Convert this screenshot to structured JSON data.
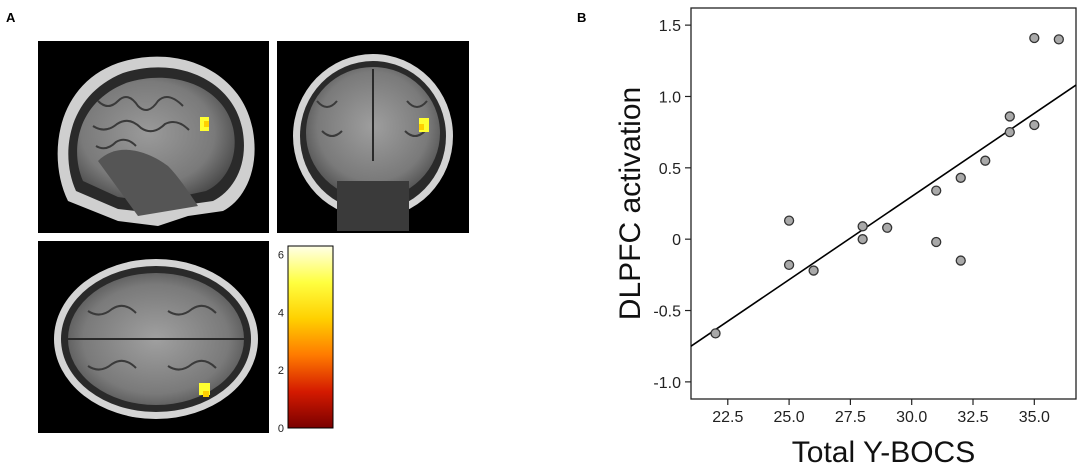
{
  "panel_a": {
    "label": "A",
    "colorbar": {
      "ticks": [
        0,
        2,
        4,
        6
      ],
      "min": 0,
      "max": 6.3,
      "colors": [
        "#7a0000",
        "#d41a00",
        "#ff7a00",
        "#ffd000",
        "#ffff40",
        "#ffffe8"
      ]
    }
  },
  "panel_b": {
    "label": "B"
  },
  "chart_data": {
    "type": "scatter",
    "xlabel": "Total Y-BOCS",
    "ylabel": "DLPFC activation",
    "xlim": [
      21.0,
      36.7
    ],
    "ylim": [
      -1.12,
      1.62
    ],
    "xticks": [
      "22.5",
      "25.0",
      "27.5",
      "30.0",
      "32.5",
      "35.0"
    ],
    "xtick_values": [
      22.5,
      25.0,
      27.5,
      30.0,
      32.5,
      35.0
    ],
    "yticks": [
      "1.5",
      "1.0",
      "0.5",
      "0",
      "-0.5",
      "-1.0"
    ],
    "ytick_values": [
      1.5,
      1.0,
      0.5,
      0,
      -0.5,
      -1.0
    ],
    "points": [
      {
        "x": 22,
        "y": -0.66
      },
      {
        "x": 25,
        "y": 0.13
      },
      {
        "x": 25,
        "y": -0.18
      },
      {
        "x": 26,
        "y": -0.22
      },
      {
        "x": 28,
        "y": 0.09
      },
      {
        "x": 28,
        "y": 0.0
      },
      {
        "x": 29,
        "y": 0.08
      },
      {
        "x": 31,
        "y": 0.34
      },
      {
        "x": 31,
        "y": -0.02
      },
      {
        "x": 32,
        "y": 0.43
      },
      {
        "x": 32,
        "y": -0.15
      },
      {
        "x": 33,
        "y": 0.55
      },
      {
        "x": 34,
        "y": 0.86
      },
      {
        "x": 34,
        "y": 0.75
      },
      {
        "x": 35,
        "y": 0.8
      },
      {
        "x": 35,
        "y": 1.41
      },
      {
        "x": 36,
        "y": 1.4
      }
    ],
    "fit_line": {
      "x1": 21.0,
      "y1": -0.75,
      "x2": 36.7,
      "y2": 1.08
    },
    "grid": false
  }
}
